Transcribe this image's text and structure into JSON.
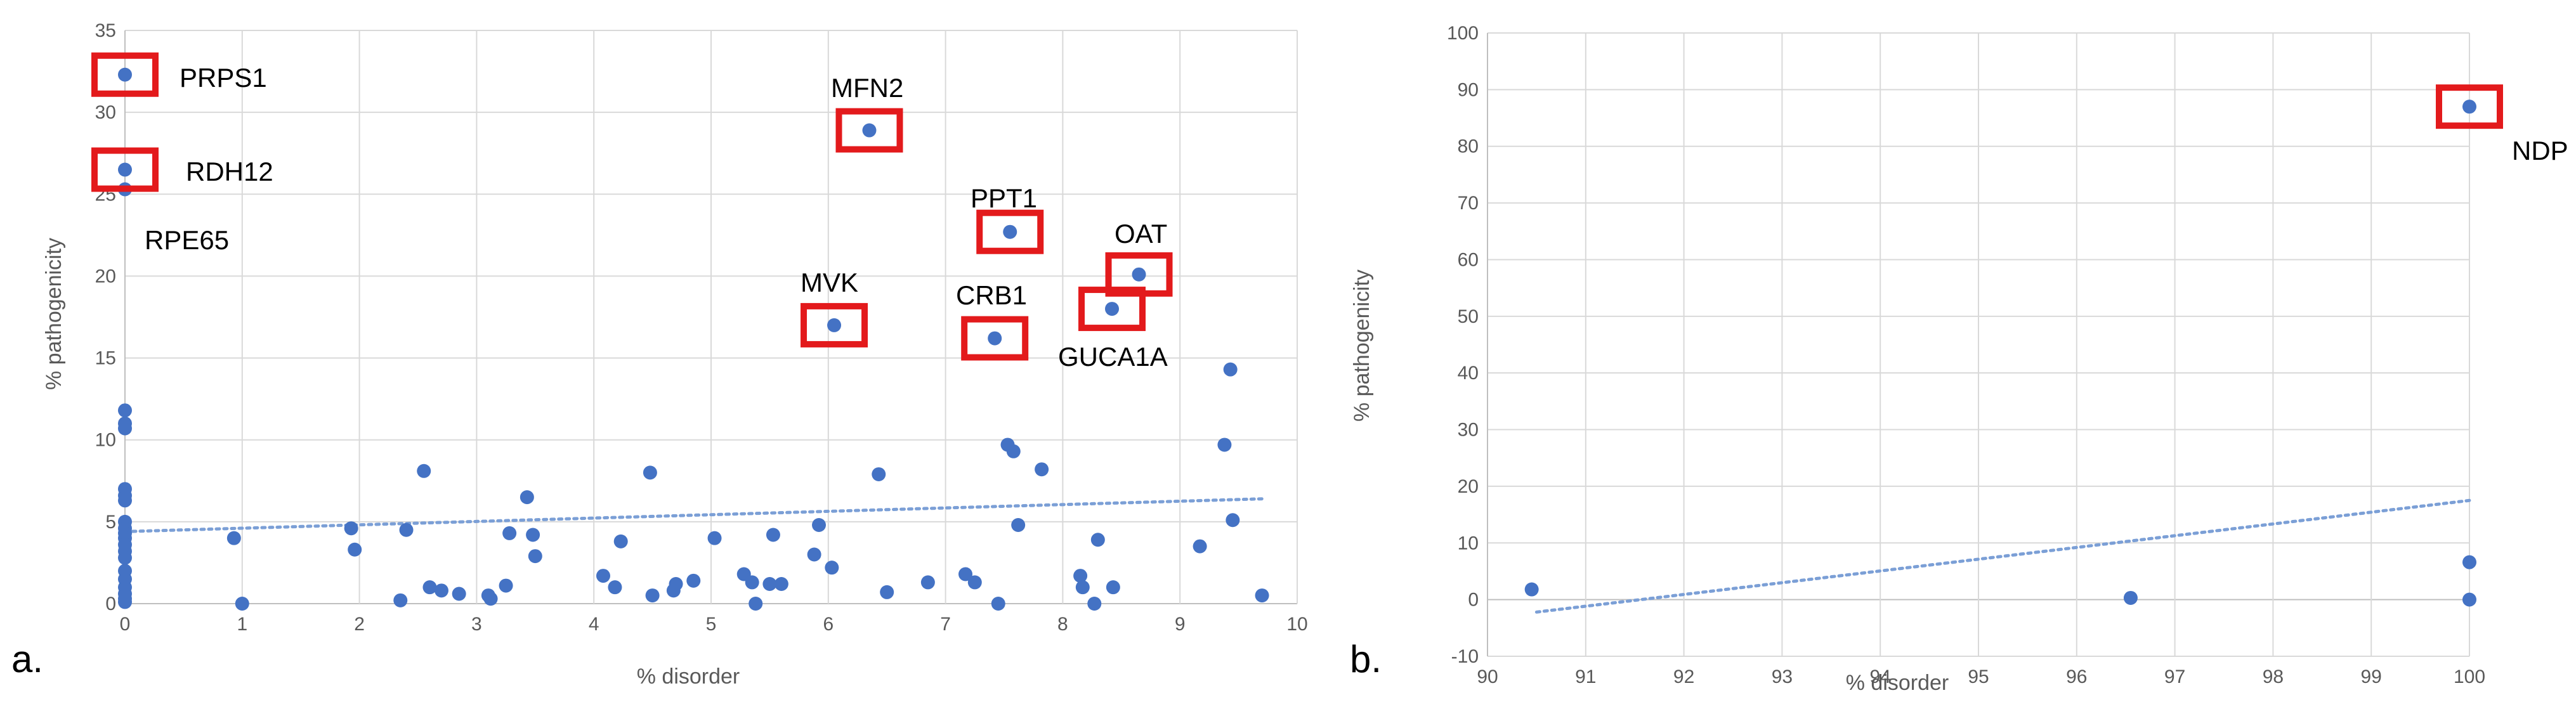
{
  "colors": {
    "point": "#4472c4",
    "trend": "#7b9fd6",
    "highlight": "#e31a1c"
  },
  "chart_data": [
    {
      "panel": "a.",
      "type": "scatter",
      "xlabel": "% disorder",
      "ylabel": "% pathogenicity",
      "xlim": [
        0,
        10
      ],
      "ylim": [
        0,
        35
      ],
      "xticks": [
        "0",
        "1",
        "2",
        "3",
        "4",
        "5",
        "6",
        "7",
        "8",
        "9",
        "10"
      ],
      "yticks": [
        "0",
        "5",
        "10",
        "15",
        "20",
        "25",
        "30",
        "35"
      ],
      "trendline": {
        "style": "dotted",
        "points": [
          [
            0,
            4.4
          ],
          [
            9.7,
            6.4
          ]
        ]
      },
      "points": [
        [
          0,
          32.3
        ],
        [
          0,
          26.5
        ],
        [
          0,
          25.3
        ],
        [
          0,
          11.8
        ],
        [
          0,
          11.0
        ],
        [
          0,
          10.7
        ],
        [
          0,
          7.0
        ],
        [
          0,
          6.6
        ],
        [
          0,
          6.3
        ],
        [
          0,
          5.0
        ],
        [
          0,
          4.6
        ],
        [
          0,
          4.3
        ],
        [
          0,
          4.0
        ],
        [
          0,
          3.6
        ],
        [
          0,
          3.2
        ],
        [
          0,
          2.8
        ],
        [
          0,
          2.0
        ],
        [
          0,
          1.5
        ],
        [
          0,
          1.0
        ],
        [
          0,
          0.6
        ],
        [
          0,
          0.3
        ],
        [
          0,
          0.1
        ],
        [
          0.93,
          4.0
        ],
        [
          1.0,
          0.0
        ],
        [
          1.93,
          4.6
        ],
        [
          1.96,
          3.3
        ],
        [
          2.35,
          0.2
        ],
        [
          2.4,
          4.5
        ],
        [
          2.55,
          8.1
        ],
        [
          2.6,
          1.0
        ],
        [
          2.7,
          0.8
        ],
        [
          2.85,
          0.6
        ],
        [
          3.1,
          0.5
        ],
        [
          3.12,
          0.3
        ],
        [
          3.25,
          1.1
        ],
        [
          3.28,
          4.3
        ],
        [
          3.43,
          6.5
        ],
        [
          3.48,
          4.2
        ],
        [
          3.5,
          2.9
        ],
        [
          4.08,
          1.7
        ],
        [
          4.18,
          1.0
        ],
        [
          4.23,
          3.8
        ],
        [
          4.48,
          8.0
        ],
        [
          4.5,
          0.5
        ],
        [
          4.68,
          0.8
        ],
        [
          4.7,
          1.2
        ],
        [
          4.85,
          1.4
        ],
        [
          5.03,
          4.0
        ],
        [
          5.28,
          1.8
        ],
        [
          5.35,
          1.3
        ],
        [
          5.38,
          0.0
        ],
        [
          5.5,
          1.2
        ],
        [
          5.53,
          4.2
        ],
        [
          5.6,
          1.2
        ],
        [
          5.88,
          3.0
        ],
        [
          5.92,
          4.8
        ],
        [
          6.03,
          2.2
        ],
        [
          6.05,
          17.0
        ],
        [
          6.35,
          28.9
        ],
        [
          6.43,
          7.9
        ],
        [
          6.5,
          0.7
        ],
        [
          6.85,
          1.3
        ],
        [
          7.17,
          1.8
        ],
        [
          7.25,
          1.3
        ],
        [
          7.42,
          16.2
        ],
        [
          7.45,
          0.0
        ],
        [
          7.53,
          9.7
        ],
        [
          7.55,
          22.7
        ],
        [
          7.58,
          9.3
        ],
        [
          7.62,
          4.8
        ],
        [
          7.82,
          8.2
        ],
        [
          8.15,
          1.7
        ],
        [
          8.17,
          1.0
        ],
        [
          8.27,
          0.0
        ],
        [
          8.3,
          3.9
        ],
        [
          8.42,
          18.0
        ],
        [
          8.43,
          1.0
        ],
        [
          8.65,
          20.1
        ],
        [
          9.17,
          3.5
        ],
        [
          9.38,
          9.7
        ],
        [
          9.43,
          14.3
        ],
        [
          9.45,
          5.1
        ],
        [
          9.7,
          0.5
        ]
      ],
      "highlights": [
        {
          "gene": "PRPS1",
          "x": 0,
          "y": 32.3
        },
        {
          "gene": "RDH12",
          "x": 0,
          "y": 26.5
        },
        {
          "gene": "MFN2",
          "x": 6.35,
          "y": 28.9
        },
        {
          "gene": "PPT1",
          "x": 7.55,
          "y": 22.7
        },
        {
          "gene": "MVK",
          "x": 6.05,
          "y": 17.0
        },
        {
          "gene": "CRB1",
          "x": 7.42,
          "y": 16.2
        },
        {
          "gene": "OAT",
          "x": 8.65,
          "y": 20.1
        },
        {
          "gene": "GUCA1A",
          "x": 8.42,
          "y": 18.0
        }
      ],
      "annotations": [
        "RPE65"
      ]
    },
    {
      "panel": "b.",
      "type": "scatter",
      "xlabel": "% disorder",
      "ylabel": "% pathogenicity",
      "xlim": [
        90,
        100
      ],
      "ylim": [
        -10,
        100
      ],
      "xticks": [
        "90",
        "91",
        "92",
        "93",
        "94",
        "95",
        "96",
        "97",
        "98",
        "99",
        "100"
      ],
      "yticks": [
        "-10",
        "0",
        "10",
        "20",
        "30",
        "40",
        "50",
        "60",
        "70",
        "80",
        "90",
        "100"
      ],
      "trendline": {
        "style": "dotted",
        "points": [
          [
            90.5,
            -2.2
          ],
          [
            100,
            17.5
          ]
        ]
      },
      "points": [
        [
          90.45,
          1.8
        ],
        [
          96.55,
          0.3
        ],
        [
          100,
          87.0
        ],
        [
          100,
          6.6
        ],
        [
          100,
          0.0
        ]
      ],
      "highlights": [
        {
          "gene": "NDP",
          "x": 100,
          "y": 87.0
        }
      ]
    }
  ]
}
